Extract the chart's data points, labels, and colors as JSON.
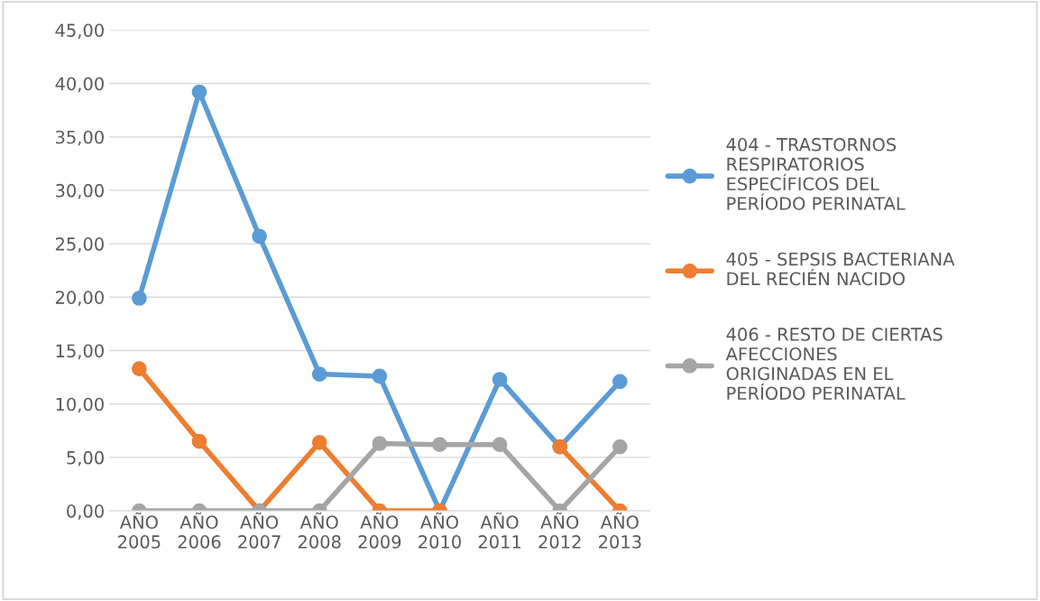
{
  "chart_data": {
    "type": "line",
    "categories": [
      "AÑO\n2005",
      "AÑO\n2006",
      "AÑO\n2007",
      "AÑO\n2008",
      "AÑO\n2009",
      "AÑO\n2010",
      "AÑO\n2011",
      "AÑO\n2012",
      "AÑO\n2013"
    ],
    "series": [
      {
        "name": "404 - TRASTORNOS\nRESPIRATORIOS\nESPECÍFICOS DEL\nPERÍODO PERINATAL",
        "color": "#5b9bd5",
        "values": [
          19.9,
          39.2,
          25.7,
          12.8,
          12.6,
          0,
          12.3,
          6.0,
          12.1
        ]
      },
      {
        "name": "405 - SEPSIS BACTERIANA\nDEL RECIÉN NACIDO",
        "color": "#ed7d31",
        "values": [
          13.3,
          6.5,
          0,
          6.4,
          0,
          0,
          null,
          6.0,
          0
        ]
      },
      {
        "name": "406 - RESTO DE CIERTAS\nAFECCIONES\nORIGINADAS EN EL\nPERÍODO PERINATAL",
        "color": "#a5a5a5",
        "values": [
          0,
          0,
          0,
          0,
          6.3,
          6.2,
          6.2,
          0,
          6.0
        ]
      }
    ],
    "ylim": [
      0,
      45
    ],
    "yticks": [
      {
        "value": 0,
        "label": "0,00"
      },
      {
        "value": 5,
        "label": "5,00"
      },
      {
        "value": 10,
        "label": "10,00"
      },
      {
        "value": 15,
        "label": "15,00"
      },
      {
        "value": 20,
        "label": "20,00"
      },
      {
        "value": 25,
        "label": "25,00"
      },
      {
        "value": 30,
        "label": "30,00"
      },
      {
        "value": 35,
        "label": "35,00"
      },
      {
        "value": 40,
        "label": "40,00"
      },
      {
        "value": 45,
        "label": "45,00"
      }
    ],
    "grid": "y",
    "legend": "right",
    "marker": "circle",
    "line_style": "solid"
  }
}
